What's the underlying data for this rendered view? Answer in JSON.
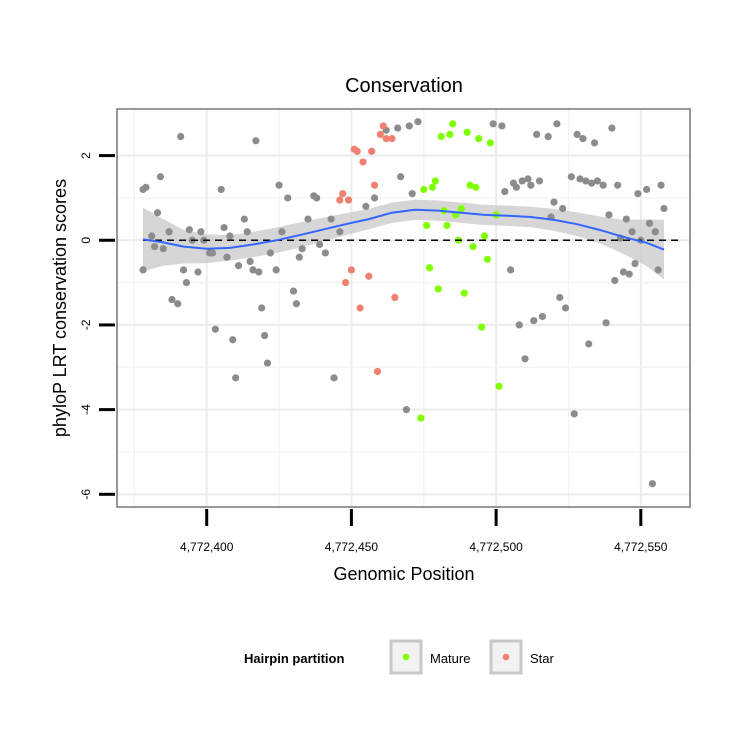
{
  "chart_data": {
    "type": "scatter",
    "title": "Conservation",
    "xlabel": "Genomic Position",
    "ylabel": "phyloP LRT conservation scores",
    "xlim": [
      4772369,
      4772567
    ],
    "ylim": [
      -6.3,
      3.1
    ],
    "x_ticks": [
      4772400,
      4772450,
      4772500,
      4772550
    ],
    "x_tick_labels": [
      "4,772,400",
      "4,772,450",
      "4,772,500",
      "4,772,550"
    ],
    "y_ticks": [
      -6,
      -4,
      -2,
      0,
      2
    ],
    "y_tick_labels": [
      "-6",
      "-4",
      "-2",
      "0",
      "2"
    ],
    "reference_line": {
      "y": 0,
      "style": "dashed"
    },
    "legend": {
      "title": "Hairpin partition",
      "entries": [
        {
          "label": "Mature",
          "color": "#7fff00"
        },
        {
          "label": "Star",
          "color": "#f08070"
        }
      ]
    },
    "colors": {
      "other": "#8c8c8c",
      "Mature": "#7fff00",
      "Star": "#f08070",
      "smooth": "#3366ff",
      "band": "#c8c8c8"
    },
    "series": [
      {
        "name": "Other",
        "points": [
          [
            4772378,
            1.2
          ],
          [
            4772379,
            1.25
          ],
          [
            4772383,
            0.65
          ],
          [
            4772384,
            1.5
          ],
          [
            4772378,
            -0.7
          ],
          [
            4772381,
            0.1
          ],
          [
            4772382,
            -0.15
          ],
          [
            4772385,
            -0.2
          ],
          [
            4772387,
            0.2
          ],
          [
            4772388,
            -1.4
          ],
          [
            4772390,
            -1.5
          ],
          [
            4772391,
            2.45
          ],
          [
            4772392,
            -0.7
          ],
          [
            4772393,
            -1.0
          ],
          [
            4772394,
            0.25
          ],
          [
            4772395,
            0.0
          ],
          [
            4772397,
            -0.75
          ],
          [
            4772398,
            0.2
          ],
          [
            4772399,
            0.0
          ],
          [
            4772401,
            -0.3
          ],
          [
            4772402,
            -0.3
          ],
          [
            4772403,
            -2.1
          ],
          [
            4772405,
            1.2
          ],
          [
            4772406,
            0.3
          ],
          [
            4772407,
            -0.4
          ],
          [
            4772408,
            0.1
          ],
          [
            4772409,
            -2.35
          ],
          [
            4772410,
            -3.25
          ],
          [
            4772411,
            -0.6
          ],
          [
            4772413,
            0.5
          ],
          [
            4772414,
            0.2
          ],
          [
            4772415,
            -0.5
          ],
          [
            4772416,
            -0.7
          ],
          [
            4772417,
            2.35
          ],
          [
            4772418,
            -0.75
          ],
          [
            4772419,
            -1.6
          ],
          [
            4772420,
            -2.25
          ],
          [
            4772421,
            -2.9
          ],
          [
            4772422,
            -0.3
          ],
          [
            4772424,
            -0.7
          ],
          [
            4772425,
            1.3
          ],
          [
            4772426,
            0.2
          ],
          [
            4772428,
            1.0
          ],
          [
            4772430,
            -1.2
          ],
          [
            4772431,
            -1.5
          ],
          [
            4772432,
            -0.4
          ],
          [
            4772433,
            -0.2
          ],
          [
            4772435,
            0.5
          ],
          [
            4772437,
            1.05
          ],
          [
            4772438,
            1.0
          ],
          [
            4772439,
            -0.1
          ],
          [
            4772441,
            -0.3
          ],
          [
            4772443,
            0.5
          ],
          [
            4772444,
            -3.25
          ],
          [
            4772446,
            0.2
          ],
          [
            4772455,
            0.8
          ],
          [
            4772458,
            1.0
          ],
          [
            4772462,
            2.6
          ],
          [
            4772466,
            2.65
          ],
          [
            4772469,
            -4.0
          ],
          [
            4772470,
            2.7
          ],
          [
            4772471,
            1.1
          ],
          [
            4772473,
            2.8
          ],
          [
            4772467,
            1.5
          ],
          [
            4772499,
            2.75
          ],
          [
            4772502,
            2.7
          ],
          [
            4772503,
            1.15
          ],
          [
            4772505,
            -0.7
          ],
          [
            4772506,
            1.35
          ],
          [
            4772507,
            1.25
          ],
          [
            4772508,
            -2.0
          ],
          [
            4772509,
            1.4
          ],
          [
            4772510,
            -2.8
          ],
          [
            4772511,
            1.45
          ],
          [
            4772512,
            1.3
          ],
          [
            4772513,
            -1.9
          ],
          [
            4772514,
            2.5
          ],
          [
            4772515,
            1.4
          ],
          [
            4772516,
            -1.8
          ],
          [
            4772518,
            2.45
          ],
          [
            4772519,
            0.55
          ],
          [
            4772520,
            0.9
          ],
          [
            4772521,
            2.75
          ],
          [
            4772522,
            -1.35
          ],
          [
            4772523,
            0.75
          ],
          [
            4772524,
            -1.6
          ],
          [
            4772526,
            1.5
          ],
          [
            4772527,
            -4.1
          ],
          [
            4772528,
            2.5
          ],
          [
            4772529,
            1.45
          ],
          [
            4772530,
            2.4
          ],
          [
            4772531,
            1.4
          ],
          [
            4772532,
            -2.45
          ],
          [
            4772533,
            1.35
          ],
          [
            4772534,
            2.3
          ],
          [
            4772535,
            1.4
          ],
          [
            4772537,
            1.3
          ],
          [
            4772538,
            -1.95
          ],
          [
            4772539,
            0.6
          ],
          [
            4772540,
            2.65
          ],
          [
            4772541,
            -0.95
          ],
          [
            4772542,
            1.3
          ],
          [
            4772543,
            0.05
          ],
          [
            4772544,
            -0.75
          ],
          [
            4772545,
            0.5
          ],
          [
            4772546,
            -0.8
          ],
          [
            4772547,
            0.2
          ],
          [
            4772548,
            -0.55
          ],
          [
            4772549,
            1.1
          ],
          [
            4772550,
            0.0
          ],
          [
            4772552,
            1.2
          ],
          [
            4772553,
            0.4
          ],
          [
            4772554,
            -5.75
          ],
          [
            4772555,
            0.2
          ],
          [
            4772556,
            -0.7
          ],
          [
            4772557,
            1.3
          ],
          [
            4772558,
            0.75
          ]
        ]
      },
      {
        "name": "Mature",
        "points": [
          [
            4772474,
            -4.2
          ],
          [
            4772475,
            1.2
          ],
          [
            4772476,
            0.35
          ],
          [
            4772477,
            -0.65
          ],
          [
            4772478,
            1.25
          ],
          [
            4772479,
            1.4
          ],
          [
            4772480,
            -1.15
          ],
          [
            4772481,
            2.45
          ],
          [
            4772482,
            0.7
          ],
          [
            4772483,
            0.35
          ],
          [
            4772484,
            2.5
          ],
          [
            4772485,
            2.75
          ],
          [
            4772486,
            0.6
          ],
          [
            4772487,
            0.0
          ],
          [
            4772488,
            0.75
          ],
          [
            4772489,
            -1.25
          ],
          [
            4772490,
            2.55
          ],
          [
            4772491,
            1.3
          ],
          [
            4772492,
            -0.15
          ],
          [
            4772493,
            1.25
          ],
          [
            4772494,
            2.4
          ],
          [
            4772495,
            -2.05
          ],
          [
            4772496,
            0.1
          ],
          [
            4772497,
            -0.45
          ],
          [
            4772498,
            2.3
          ],
          [
            4772500,
            0.6
          ],
          [
            4772501,
            -3.45
          ]
        ]
      },
      {
        "name": "Star",
        "points": [
          [
            4772446,
            0.95
          ],
          [
            4772447,
            1.1
          ],
          [
            4772448,
            -1.0
          ],
          [
            4772449,
            0.95
          ],
          [
            4772450,
            -0.7
          ],
          [
            4772451,
            2.15
          ],
          [
            4772452,
            2.1
          ],
          [
            4772453,
            -1.6
          ],
          [
            4772454,
            1.85
          ],
          [
            4772456,
            -0.85
          ],
          [
            4772457,
            2.1
          ],
          [
            4772458,
            1.3
          ],
          [
            4772459,
            -3.1
          ],
          [
            4772460,
            2.5
          ],
          [
            4772461,
            2.7
          ],
          [
            4772462,
            2.4
          ],
          [
            4772464,
            2.4
          ],
          [
            4772465,
            -1.35
          ]
        ]
      }
    ],
    "smooth": {
      "x": [
        4772378,
        4772385,
        4772392,
        4772400,
        4772408,
        4772416,
        4772424,
        4772432,
        4772440,
        4772448,
        4772456,
        4772464,
        4772472,
        4772480,
        4772488,
        4772496,
        4772504,
        4772512,
        4772520,
        4772528,
        4772536,
        4772544,
        4772552,
        4772558
      ],
      "y": [
        0.02,
        -0.05,
        -0.15,
        -0.2,
        -0.18,
        -0.1,
        0.0,
        0.12,
        0.25,
        0.38,
        0.5,
        0.65,
        0.72,
        0.7,
        0.65,
        0.6,
        0.58,
        0.55,
        0.48,
        0.38,
        0.24,
        0.08,
        -0.06,
        -0.22
      ],
      "band": [
        0.75,
        0.55,
        0.4,
        0.34,
        0.3,
        0.3,
        0.3,
        0.3,
        0.28,
        0.26,
        0.24,
        0.24,
        0.24,
        0.24,
        0.24,
        0.24,
        0.24,
        0.24,
        0.26,
        0.28,
        0.32,
        0.4,
        0.55,
        0.7
      ]
    }
  }
}
